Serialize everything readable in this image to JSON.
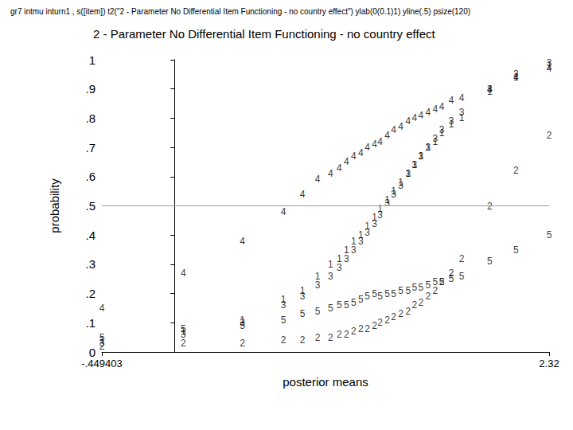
{
  "chart_data": {
    "type": "scatter",
    "caption": "gr7 intmu inturn1 , s([item]) t2(\"2 - Parameter No Differential Item Functioning - no country effect\") ylab(0(0.1)1) yline(.5) psize(120)",
    "title": "2 - Parameter No Differential Item Functioning - no country effect",
    "x_label": "posterior means",
    "y_label": "probability",
    "marker": "label",
    "color": "#000000",
    "grid": false,
    "hline": 0.5,
    "x": [
      -0.449403,
      0.055,
      0.421,
      0.674,
      0.793,
      0.887,
      0.966,
      1.021,
      1.065,
      1.11,
      1.154,
      1.194,
      1.239,
      1.273,
      1.318,
      1.357,
      1.402,
      1.447,
      1.486,
      1.526,
      1.57,
      1.615,
      1.655,
      1.714,
      1.778,
      1.952,
      2.115,
      2.32
    ],
    "series": [
      {
        "name": "1",
        "values": [
          0.04,
          0.07,
          0.11,
          0.18,
          0.21,
          0.26,
          0.3,
          0.32,
          0.35,
          0.38,
          0.4,
          0.43,
          0.46,
          0.49,
          0.52,
          0.55,
          0.58,
          0.61,
          0.64,
          0.67,
          0.7,
          0.72,
          0.75,
          0.78,
          0.8,
          0.89,
          0.94,
          0.98
        ]
      },
      {
        "name": "2",
        "values": [
          0.02,
          0.03,
          0.03,
          0.04,
          0.04,
          0.05,
          0.05,
          0.06,
          0.06,
          0.07,
          0.08,
          0.08,
          0.09,
          0.1,
          0.11,
          0.12,
          0.13,
          0.14,
          0.16,
          0.17,
          0.19,
          0.21,
          0.24,
          0.27,
          0.32,
          0.5,
          0.62,
          0.74
        ]
      },
      {
        "name": "3",
        "values": [
          0.03,
          0.06,
          0.1,
          0.16,
          0.19,
          0.23,
          0.26,
          0.29,
          0.32,
          0.35,
          0.38,
          0.41,
          0.44,
          0.47,
          0.51,
          0.54,
          0.57,
          0.61,
          0.64,
          0.67,
          0.7,
          0.73,
          0.76,
          0.79,
          0.82,
          0.9,
          0.95,
          0.99
        ]
      },
      {
        "name": "4",
        "values": [
          0.15,
          0.27,
          0.38,
          0.48,
          0.54,
          0.59,
          0.61,
          0.63,
          0.65,
          0.67,
          0.68,
          0.7,
          0.71,
          0.72,
          0.74,
          0.76,
          0.77,
          0.79,
          0.8,
          0.81,
          0.82,
          0.83,
          0.84,
          0.86,
          0.87,
          0.9,
          0.94,
          0.97
        ]
      },
      {
        "name": "5",
        "values": [
          0.05,
          0.08,
          0.09,
          0.11,
          0.13,
          0.14,
          0.15,
          0.16,
          0.16,
          0.17,
          0.18,
          0.19,
          0.2,
          0.19,
          0.2,
          0.2,
          0.21,
          0.21,
          0.22,
          0.22,
          0.23,
          0.24,
          0.24,
          0.25,
          0.26,
          0.31,
          0.35,
          0.4
        ]
      }
    ],
    "xlim": [
      -0.449403,
      2.32
    ],
    "xticks": [
      {
        "value": -0.449403,
        "label": "-.449403"
      },
      {
        "value": 2.32,
        "label": "2.32"
      }
    ],
    "ylim": [
      0,
      1
    ],
    "yticks": [
      0,
      {
        "value": 0.1,
        "label": ".1"
      },
      {
        "value": 0.2,
        "label": ".2"
      },
      {
        "value": 0.3,
        "label": ".3"
      },
      {
        "value": 0.4,
        "label": ".4"
      },
      {
        "value": 0.5,
        "label": ".5"
      },
      {
        "value": 0.6,
        "label": ".6"
      },
      {
        "value": 0.7,
        "label": ".7"
      },
      {
        "value": 0.8,
        "label": ".8"
      },
      {
        "value": 0.9,
        "label": ".9"
      },
      1
    ]
  }
}
